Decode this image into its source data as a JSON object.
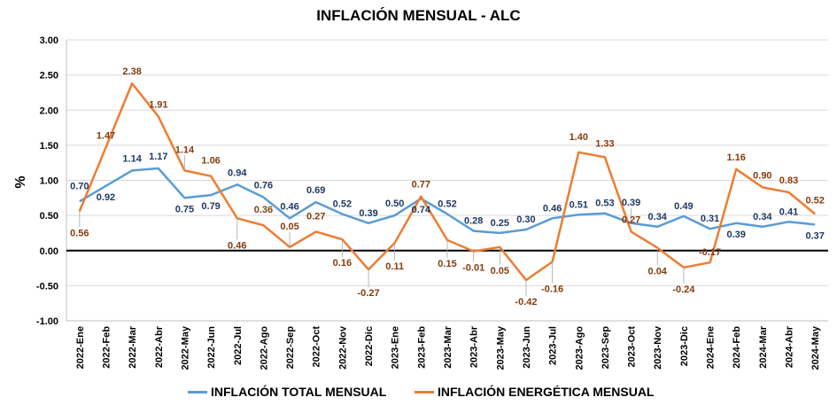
{
  "chart_data": {
    "type": "line",
    "title": "INFLACIÓN MENSUAL - ALC",
    "xlabel": "",
    "ylabel": "%",
    "ylim": [
      -1.0,
      3.0
    ],
    "yticks": [
      "3.00",
      "2.50",
      "2.00",
      "1.50",
      "1.00",
      "0.50",
      "0.00",
      "-0.50",
      "-1.00"
    ],
    "grid": true,
    "legend_position": "bottom",
    "categories": [
      "2022-Ene",
      "2022-Feb",
      "2022-Mar",
      "2022-Abr",
      "2022-May",
      "2022-Jun",
      "2022-Jul",
      "2022-Ago",
      "2022-Sep",
      "2022-Oct",
      "2022-Nov",
      "2022-Dic",
      "2023-Ene",
      "2023-Feb",
      "2023-Mar",
      "2023-Abr",
      "2023-May",
      "2023-Jun",
      "2023-Jul",
      "2023-Ago",
      "2023-Sep",
      "2023-Oct",
      "2023-Nov",
      "2023-Dic",
      "2024-Ene",
      "2024-Feb",
      "2024-Mar",
      "2024-Abr",
      "2024-May"
    ],
    "series": [
      {
        "name": "INFLACIÓN TOTAL MENSUAL",
        "color": "#5B9BD5",
        "label_color": "#1F3864",
        "values": [
          0.7,
          0.92,
          1.14,
          1.17,
          0.75,
          0.79,
          0.94,
          0.76,
          0.46,
          0.69,
          0.52,
          0.39,
          0.5,
          0.74,
          0.52,
          0.28,
          0.25,
          0.3,
          0.46,
          0.51,
          0.53,
          0.39,
          0.34,
          0.49,
          0.31,
          0.39,
          0.34,
          0.41,
          0.37
        ],
        "labels": [
          "0.70",
          "0.92",
          "1.14",
          "1.17",
          "0.75",
          "0.79",
          "0.94",
          "0.76",
          "0.46",
          "0.69",
          "0.52",
          "0.39",
          "0.50",
          "0.74",
          "0.52",
          "0.28",
          "0.25",
          "0.30",
          "0.46",
          "0.51",
          "0.53",
          "0.39",
          "0.34",
          "0.49",
          "0.31",
          "0.39",
          "0.34",
          "0.41",
          "0.37"
        ]
      },
      {
        "name": "INFLACIÓN ENERGÉTICA MENSUAL",
        "color": "#ED7D31",
        "label_color": "#843C0C",
        "values": [
          0.56,
          1.47,
          2.38,
          1.91,
          1.14,
          1.06,
          0.46,
          0.36,
          0.05,
          0.27,
          0.16,
          -0.27,
          0.11,
          0.77,
          0.15,
          -0.01,
          0.05,
          -0.42,
          -0.16,
          1.4,
          1.33,
          0.27,
          0.04,
          -0.24,
          -0.17,
          1.16,
          0.9,
          0.83,
          0.52
        ],
        "labels": [
          "0.56",
          "1.47",
          "2.38",
          "1.91",
          "1.14",
          "1.06",
          "0.46",
          "0.36",
          "0.05",
          "0.27",
          "0.16",
          "-0.27",
          "0.11",
          "0.77",
          "0.15",
          "-0.01",
          "0.05",
          "-0.42",
          "-0.16",
          "1.40",
          "1.33",
          "0.27",
          "0.04",
          "-0.24",
          "-0.17",
          "1.16",
          "0.90",
          "0.83",
          "0.52"
        ]
      }
    ]
  }
}
